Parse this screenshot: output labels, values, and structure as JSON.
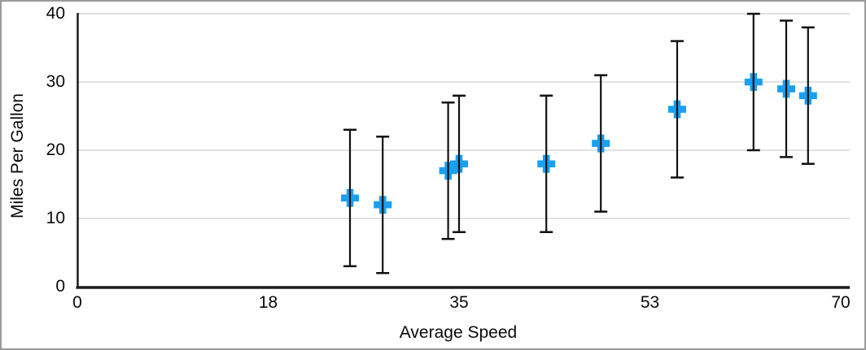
{
  "frame": {
    "background": "#ffffff",
    "border_color": "#9a9a9a"
  },
  "chart_data": {
    "type": "scatter",
    "title": "",
    "xlabel": "Average Speed",
    "ylabel": "Miles Per Gallon",
    "xlim": [
      0,
      70
    ],
    "ylim": [
      0,
      40
    ],
    "grid": "horizontal-only",
    "grid_color": "#d8d8d8",
    "axis_color": "#1a1a1a",
    "x_ticks": {
      "values": [
        0,
        17.5,
        35,
        52.5,
        70
      ],
      "labels": [
        "0",
        "18",
        "35",
        "53",
        "70"
      ]
    },
    "y_ticks": {
      "values": [
        0,
        10,
        20,
        30,
        40
      ],
      "labels": [
        "0",
        "10",
        "20",
        "30",
        "40"
      ]
    },
    "series": [
      {
        "name": "Miles Per Gallon",
        "marker": "plus",
        "marker_color": "#18a0f2",
        "error_bar_color": "#111111",
        "error_bar_type": "fixed ±10",
        "points": [
          {
            "x": 25,
            "y": 13,
            "err": 10
          },
          {
            "x": 28,
            "y": 12,
            "err": 10
          },
          {
            "x": 34,
            "y": 17,
            "err": 10
          },
          {
            "x": 35,
            "y": 18,
            "err": 10
          },
          {
            "x": 43,
            "y": 18,
            "err": 10
          },
          {
            "x": 48,
            "y": 21,
            "err": 10
          },
          {
            "x": 55,
            "y": 26,
            "err": 10
          },
          {
            "x": 62,
            "y": 30,
            "err": 10
          },
          {
            "x": 65,
            "y": 29,
            "err": 10
          },
          {
            "x": 67,
            "y": 28,
            "err": 10
          }
        ]
      }
    ]
  }
}
